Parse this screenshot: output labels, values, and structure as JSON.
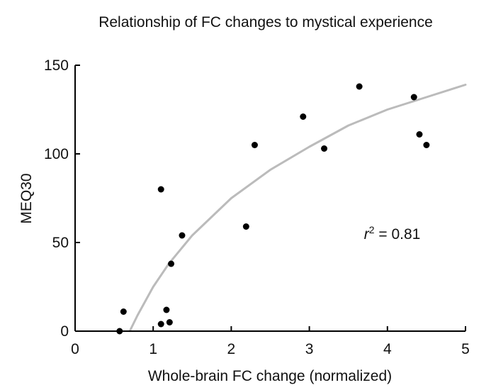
{
  "chart_data": {
    "type": "scatter",
    "title": "Relationship of FC changes to mystical experience",
    "xlabel": "Whole-brain FC change (normalized)",
    "ylabel": "MEQ30",
    "xlim": [
      0,
      5
    ],
    "ylim": [
      0,
      150
    ],
    "xticks": [
      0,
      1,
      2,
      3,
      4,
      5
    ],
    "yticks": [
      0,
      50,
      100,
      150
    ],
    "xtick_labels": [
      "0",
      "1",
      "2",
      "3",
      "4",
      "5"
    ],
    "ytick_labels": [
      "0",
      "50",
      "100",
      "150"
    ],
    "grid": false,
    "legend": "none",
    "points": [
      {
        "x": 0.57,
        "y": 0
      },
      {
        "x": 0.62,
        "y": 11
      },
      {
        "x": 1.1,
        "y": 4
      },
      {
        "x": 1.1,
        "y": 80
      },
      {
        "x": 1.17,
        "y": 12
      },
      {
        "x": 1.21,
        "y": 5
      },
      {
        "x": 1.23,
        "y": 38
      },
      {
        "x": 1.37,
        "y": 54
      },
      {
        "x": 2.19,
        "y": 59
      },
      {
        "x": 2.3,
        "y": 105
      },
      {
        "x": 2.92,
        "y": 121
      },
      {
        "x": 3.19,
        "y": 103
      },
      {
        "x": 3.64,
        "y": 138
      },
      {
        "x": 4.34,
        "y": 132
      },
      {
        "x": 4.41,
        "y": 111
      },
      {
        "x": 4.5,
        "y": 105
      }
    ],
    "fit": {
      "x": [
        0.7,
        0.8,
        1.0,
        1.2,
        1.5,
        2.0,
        2.5,
        3.0,
        3.5,
        4.0,
        4.5,
        5.0
      ],
      "y": [
        0,
        9,
        25,
        38,
        54,
        75,
        91,
        104,
        116,
        125,
        132,
        139
      ]
    },
    "annotation": {
      "variable": "r",
      "exponent": "2",
      "text": " = 0.81",
      "x": 3.7,
      "y": 52
    },
    "colors": {
      "points": "#000000",
      "fit": "#bbbbbb",
      "axes": "#000000"
    }
  }
}
